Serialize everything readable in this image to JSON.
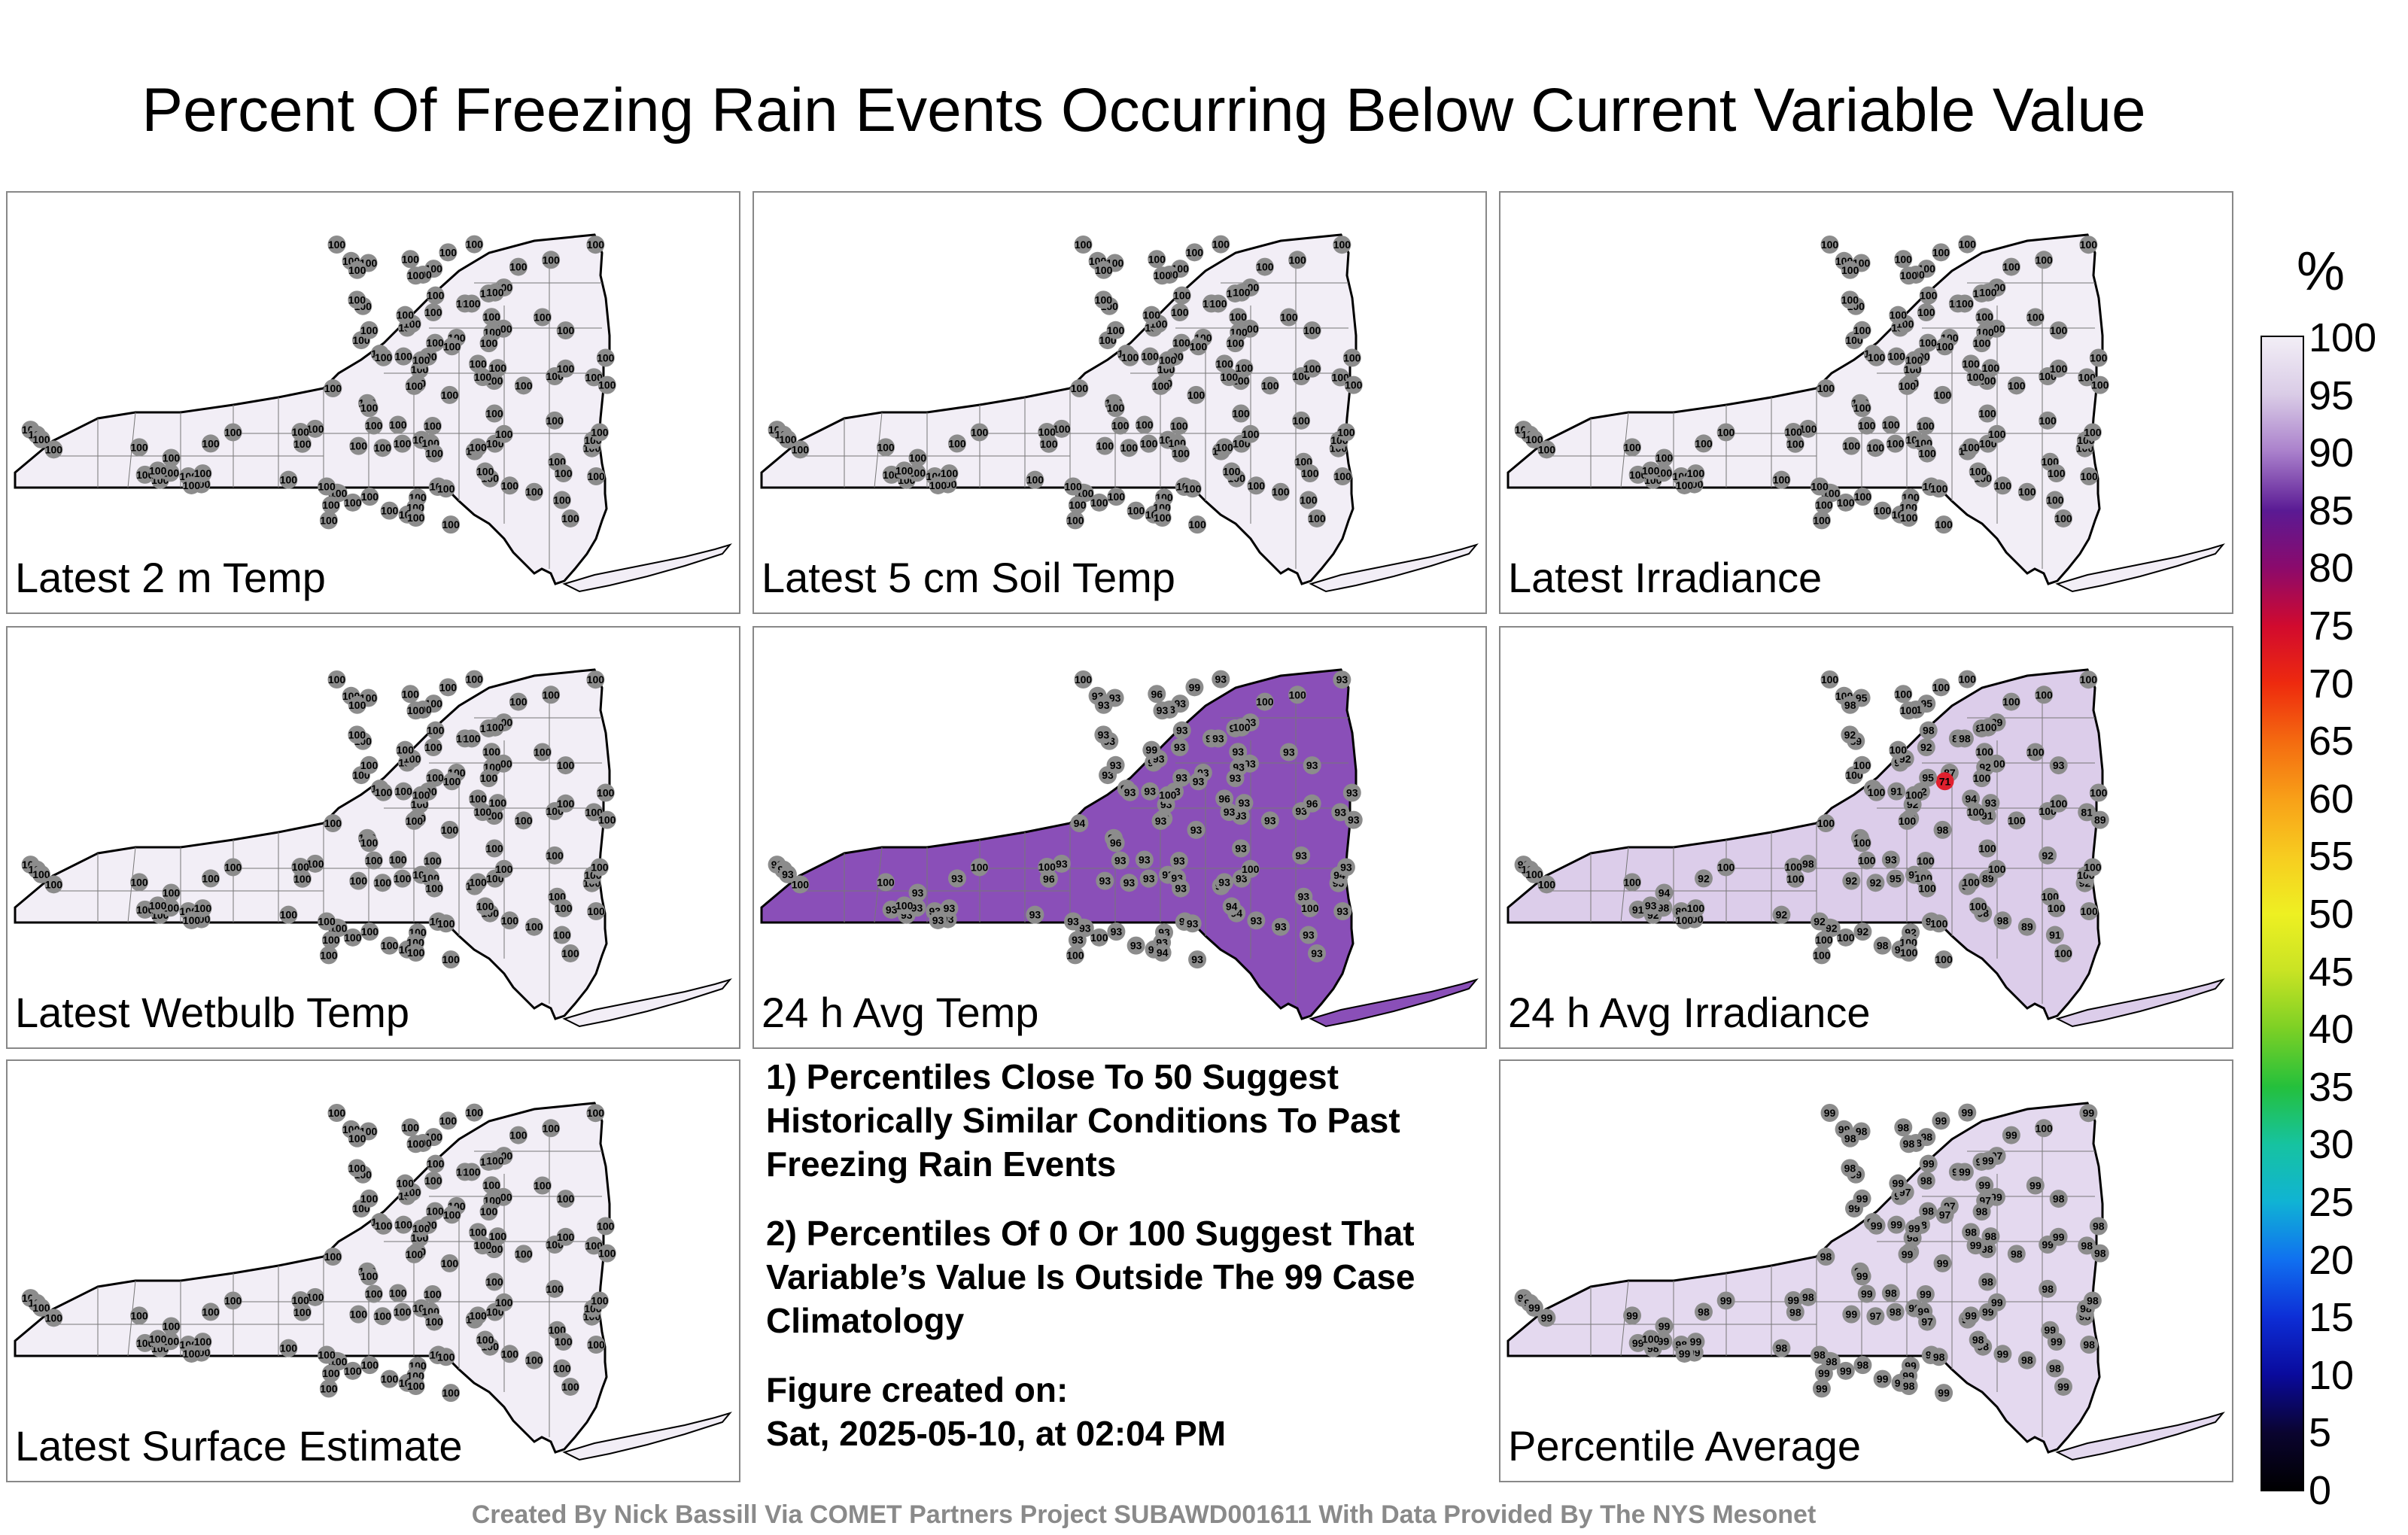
{
  "title": "Percent Of Freezing Rain Events Occurring Below Current Variable Value",
  "footer": "Created By Nick Bassill Via COMET Partners Project SUBAWD001611 With Data Provided By The NYS Mesonet",
  "notes": {
    "note1": "1) Percentiles Close To 50 Suggest Historically Similar Conditions To Past Freezing Rain Events",
    "note2": "2) Percentiles Of 0 Or 100 Suggest That Variable’s Value Is Outside The 99 Case Climatology",
    "created_label": "Figure created on:",
    "created_date": "Sat, 2025-05-10, at 02:04 PM"
  },
  "colorbar": {
    "unit": "%",
    "ticks": [
      "100",
      "95",
      "90",
      "85",
      "80",
      "75",
      "70",
      "65",
      "60",
      "55",
      "50",
      "45",
      "40",
      "35",
      "30",
      "25",
      "20",
      "15",
      "10",
      "5",
      "0"
    ],
    "colors": [
      "#f2eef6",
      "#d9cbe6",
      "#a97fcb",
      "#5a1a94",
      "#8b0a6c",
      "#d10a2e",
      "#ee2a0e",
      "#f46a10",
      "#f8a018",
      "#f7cc20",
      "#eef022",
      "#c8e324",
      "#7cd025",
      "#24c03c",
      "#16c3a0",
      "#10b3d4",
      "#1070f0",
      "#0d2ed6",
      "#0a0a9c",
      "#0a0430",
      "#000000"
    ]
  },
  "panels": [
    {
      "label": "Latest 2 m Temp",
      "fill": "#f2eef6",
      "stations": [
        "100",
        "100",
        "100",
        "100",
        "100",
        "100",
        "100",
        "100",
        "100",
        "100",
        "100",
        "100",
        "100",
        "100",
        "100",
        "100",
        "100",
        "100",
        "100",
        "100",
        "100",
        "100",
        "100",
        "100",
        "100",
        "100",
        "100",
        "100",
        "100",
        "100",
        "100",
        "100",
        "100",
        "100",
        "100",
        "100",
        "100",
        "100",
        "100",
        "100",
        "100",
        "100",
        "100",
        "100",
        "100",
        "100",
        "100",
        "100",
        "100",
        "100",
        "100",
        "100",
        "100",
        "100",
        "100",
        "100",
        "100",
        "100",
        "100",
        "100",
        "100",
        "100",
        "100",
        "100",
        "100",
        "100",
        "100",
        "100",
        "100",
        "100",
        "100",
        "100",
        "100",
        "100",
        "100",
        "100",
        "100",
        "100",
        "100",
        "100",
        "100",
        "100",
        "100",
        "100",
        "100",
        "100",
        "100",
        "100",
        "100",
        "100",
        "100",
        "100",
        "100",
        "100",
        "100",
        "100",
        "100",
        "100",
        "100",
        "100",
        "100",
        "100",
        "100",
        "100",
        "100",
        "100",
        "100",
        "100",
        "100",
        "100",
        "100",
        "100",
        "100",
        "100",
        "100",
        "100",
        "100",
        "100",
        "100",
        "100",
        "100"
      ]
    },
    {
      "label": "Latest 5 cm Soil Temp",
      "fill": "#f2eef6",
      "stations": [
        "100",
        "100",
        "100",
        "100",
        "100",
        "100",
        "100",
        "100",
        "100",
        "100",
        "100",
        "100",
        "100",
        "100",
        "100",
        "100",
        "100",
        "100",
        "100",
        "100",
        "100",
        "100",
        "100",
        "100",
        "100",
        "100",
        "100",
        "100",
        "100",
        "100",
        "100",
        "100",
        "100",
        "100",
        "100",
        "100",
        "100",
        "100",
        "100",
        "100",
        "100",
        "100",
        "100",
        "100",
        "100",
        "100",
        "100",
        "100",
        "100",
        "100",
        "100",
        "100",
        "100",
        "100",
        "100",
        "100",
        "100",
        "100",
        "100",
        "100",
        "100",
        "100",
        "100",
        "100",
        "100",
        "100",
        "100",
        "100",
        "100",
        "100",
        "100",
        "100",
        "100",
        "100",
        "100",
        "100",
        "100",
        "100",
        "100",
        "100",
        "100",
        "100",
        "100",
        "100",
        "100",
        "100",
        "100",
        "100",
        "100",
        "100",
        "100",
        "100",
        "100",
        "100",
        "100",
        "100",
        "100",
        "100",
        "100",
        "100",
        "100",
        "100",
        "100",
        "100",
        "100",
        "100",
        "100",
        "100",
        "100",
        "100",
        "100",
        "100",
        "100",
        "100",
        "100",
        "100",
        "100",
        "100",
        "100",
        "100",
        "100"
      ]
    },
    {
      "label": "Latest Irradiance",
      "fill": "#f2eef6",
      "stations": [
        "100",
        "100",
        "100",
        "100",
        "100",
        "100",
        "100",
        "100",
        "100",
        "100",
        "100",
        "100",
        "100",
        "100",
        "100",
        "100",
        "100",
        "100",
        "100",
        "100",
        "100",
        "100",
        "100",
        "100",
        "100",
        "100",
        "100",
        "100",
        "100",
        "100",
        "100",
        "100",
        "100",
        "100",
        "100",
        "100",
        "100",
        "100",
        "100",
        "100",
        "100",
        "100",
        "100",
        "100",
        "100",
        "100",
        "100",
        "100",
        "100",
        "100",
        "100",
        "100",
        "100",
        "100",
        "100",
        "100",
        "100",
        "100",
        "100",
        "100",
        "100",
        "100",
        "100",
        "100",
        "100",
        "100",
        "100",
        "100",
        "100",
        "100",
        "100",
        "100",
        "100",
        "100",
        "100",
        "100",
        "100",
        "100",
        "100",
        "100",
        "100",
        "100",
        "100",
        "100",
        "100",
        "100",
        "100",
        "100",
        "100",
        "100",
        "100",
        "100",
        "100",
        "100",
        "100",
        "100",
        "100",
        "100",
        "100",
        "100",
        "100",
        "100",
        "100",
        "100",
        "100",
        "100",
        "100",
        "100",
        "100",
        "100",
        "100",
        "100",
        "100",
        "100",
        "100",
        "100",
        "100",
        "100",
        "100",
        "100",
        "100"
      ]
    },
    {
      "label": "Latest Wetbulb Temp",
      "fill": "#f2eef6",
      "stations": [
        "100",
        "100",
        "100",
        "100",
        "100",
        "100",
        "100",
        "100",
        "100",
        "100",
        "100",
        "100",
        "100",
        "100",
        "100",
        "100",
        "100",
        "100",
        "100",
        "100",
        "100",
        "100",
        "100",
        "100",
        "100",
        "100",
        "100",
        "100",
        "100",
        "100",
        "100",
        "100",
        "100",
        "100",
        "100",
        "100",
        "100",
        "100",
        "100",
        "100",
        "100",
        "100",
        "100",
        "100",
        "100",
        "100",
        "100",
        "100",
        "100",
        "100",
        "100",
        "100",
        "100",
        "100",
        "100",
        "100",
        "100",
        "100",
        "100",
        "100",
        "100",
        "100",
        "100",
        "100",
        "100",
        "100",
        "100",
        "100",
        "100",
        "100",
        "100",
        "100",
        "100",
        "100",
        "100",
        "100",
        "100",
        "100",
        "100",
        "100",
        "100",
        "100",
        "100",
        "100",
        "100",
        "100",
        "100",
        "100",
        "100",
        "100",
        "100",
        "100",
        "100",
        "100",
        "100",
        "100",
        "100",
        "100",
        "100",
        "100",
        "100",
        "100",
        "100",
        "100",
        "100",
        "100",
        "100",
        "100",
        "100",
        "100",
        "100",
        "100",
        "100",
        "100",
        "100",
        "100",
        "100",
        "100",
        "100",
        "100",
        "100"
      ]
    },
    {
      "label": "24 h Avg Temp",
      "fill": "#8a4fb8",
      "stations": [
        "93",
        "93",
        "93",
        "93",
        "93",
        "93",
        "93",
        "93",
        "93",
        "93",
        "93",
        "93",
        "93",
        "93",
        "93",
        "93",
        "93",
        "93",
        "93",
        "93",
        "93",
        "93",
        "93",
        "93",
        "93",
        "93",
        "93",
        "93",
        "93",
        "93",
        "93",
        "93",
        "93",
        "93",
        "93",
        "93",
        "93",
        "93",
        "93",
        "93",
        "93",
        "93",
        "93",
        "93",
        "93",
        "93",
        "93",
        "93",
        "93",
        "93",
        "93",
        "93",
        "93",
        "93",
        "93",
        "93",
        "93",
        "93",
        "93",
        "93",
        "93",
        "93",
        "93",
        "93",
        "93",
        "93",
        "93",
        "93",
        "93",
        "93",
        "93",
        "93",
        "93",
        "93",
        "93",
        "93",
        "93",
        "93",
        "93",
        "93",
        "93",
        "93",
        "93",
        "96",
        "94",
        "94",
        "94",
        "96",
        "94",
        "93",
        "93",
        "93",
        "93",
        "93",
        "93",
        "93",
        "93",
        "93",
        "93",
        "93",
        "93",
        "96",
        "94",
        "99",
        "99",
        "96",
        "96",
        "100",
        "100",
        "100",
        "100",
        "100",
        "100",
        "100",
        "100",
        "100",
        "100",
        "100",
        "100",
        "100",
        "100"
      ]
    },
    {
      "label": "24 h Avg Irradiance",
      "fill": "#dccdea",
      "stations": [
        "98",
        "97",
        "90",
        "87",
        "85",
        "89",
        "91",
        "89",
        "71",
        "91",
        "89",
        "81",
        "89",
        "100",
        "98",
        "95",
        "95",
        "92",
        "92",
        "91",
        "92",
        "92",
        "92",
        "92",
        "92",
        "91",
        "89",
        "89",
        "89",
        "92",
        "92",
        "92",
        "92",
        "94",
        "92",
        "95",
        "92",
        "92",
        "91",
        "92",
        "92",
        "92",
        "92",
        "92",
        "92",
        "93",
        "95",
        "95",
        "93",
        "94",
        "100",
        "98",
        "100",
        "100",
        "100",
        "100",
        "100",
        "100",
        "100",
        "100",
        "100",
        "100",
        "100",
        "100",
        "100",
        "100",
        "100",
        "100",
        "100",
        "100",
        "100",
        "100",
        "100",
        "98",
        "98",
        "98",
        "98",
        "98",
        "98",
        "98",
        "93",
        "93",
        "93",
        "94",
        "98",
        "100",
        "100",
        "100",
        "100",
        "100",
        "100",
        "100",
        "100",
        "100",
        "100",
        "100",
        "100",
        "100",
        "100",
        "100",
        "100",
        "100",
        "100",
        "100",
        "100",
        "100",
        "100",
        "100",
        "100",
        "100",
        "100",
        "100",
        "93",
        "100",
        "100",
        "100",
        "100",
        "100",
        "100",
        "100",
        "100"
      ]
    },
    {
      "label": "Latest Surface Estimate",
      "fill": "#f2eef6",
      "stations": [
        "100",
        "100",
        "100",
        "100",
        "100",
        "100",
        "100",
        "100",
        "100",
        "100",
        "100",
        "100",
        "100",
        "100",
        "100",
        "100",
        "100",
        "100",
        "100",
        "100",
        "100",
        "100",
        "100",
        "100",
        "100",
        "100",
        "100",
        "100",
        "100",
        "100",
        "100",
        "100",
        "100",
        "100",
        "100",
        "100",
        "100",
        "100",
        "100",
        "100",
        "100",
        "100",
        "100",
        "100",
        "100",
        "100",
        "100",
        "100",
        "100",
        "100",
        "100",
        "100",
        "100",
        "100",
        "100",
        "100",
        "100",
        "100",
        "100",
        "100",
        "100",
        "100",
        "100",
        "100",
        "100",
        "100",
        "100",
        "100",
        "100",
        "100",
        "100",
        "100",
        "100",
        "100",
        "100",
        "100",
        "100",
        "100",
        "100",
        "100",
        "100",
        "100",
        "100",
        "100",
        "100",
        "100",
        "100",
        "100",
        "100",
        "100",
        "100",
        "100",
        "100",
        "100",
        "100",
        "100",
        "100",
        "100",
        "100",
        "100",
        "100",
        "100",
        "100",
        "100",
        "100",
        "100",
        "100",
        "100",
        "100",
        "100",
        "100",
        "100",
        "100",
        "100",
        "100",
        "100",
        "100",
        "100",
        "100",
        "100",
        "100"
      ]
    },
    {
      "label": "Percentile Average",
      "fill": "#e4d9ef",
      "stations": [
        "99",
        "99",
        "98",
        "97",
        "97",
        "99",
        "99",
        "98",
        "97",
        "98",
        "97",
        "98",
        "99",
        "99",
        "98",
        "98",
        "98",
        "98",
        "98",
        "98",
        "98",
        "97",
        "97",
        "98",
        "99",
        "99",
        "99",
        "98",
        "98",
        "99",
        "99",
        "98",
        "98",
        "98",
        "98",
        "98",
        "99",
        "99",
        "98",
        "98",
        "98",
        "98",
        "98",
        "98",
        "97",
        "98",
        "98",
        "98",
        "98",
        "99",
        "99",
        "99",
        "99",
        "99",
        "99",
        "99",
        "99",
        "99",
        "99",
        "99",
        "99",
        "99",
        "99",
        "99",
        "99",
        "99",
        "99",
        "99",
        "99",
        "99",
        "99",
        "99",
        "99",
        "99",
        "99",
        "99",
        "99",
        "99",
        "98",
        "98",
        "98",
        "98",
        "98",
        "98",
        "98",
        "98",
        "98",
        "98",
        "98",
        "97",
        "98",
        "98",
        "98",
        "98",
        "98",
        "98",
        "98",
        "99",
        "99",
        "99",
        "98",
        "99",
        "98",
        "99",
        "99",
        "99",
        "98",
        "99",
        "99",
        "99",
        "99",
        "99",
        "100",
        "100",
        "99",
        "99",
        "99",
        "99",
        "99",
        "99",
        "99"
      ]
    }
  ]
}
